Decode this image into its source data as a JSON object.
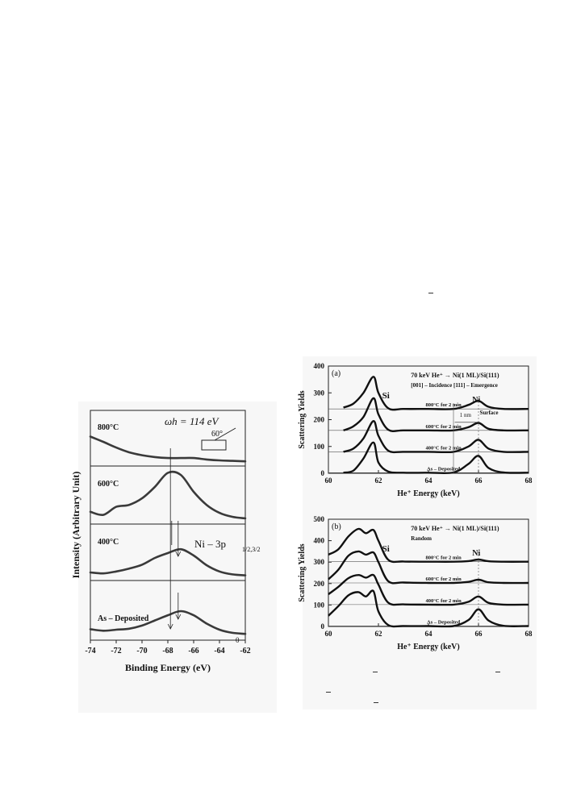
{
  "chart_data": [
    {
      "type": "line",
      "xlabel": "Binding Energy (eV)",
      "ylabel": "Intensity (Arbitrary Unit)",
      "xlim": [
        -74,
        -62
      ],
      "x_reversed": true,
      "xticks": [
        "-74",
        "-72",
        "-70",
        "-68",
        "-66",
        "-64",
        "-62"
      ],
      "photon_label": "ωh = 114 eV",
      "angle_label": "60°",
      "peak_label_main": "Ni – 3p",
      "peak_label_sub": "1/2,3/2",
      "series": [
        {
          "name": "800°C",
          "x": [
            -74,
            -73,
            -72,
            -71,
            -70,
            -69,
            -68,
            -67,
            -66,
            -65,
            -64,
            -63,
            -62
          ],
          "values": [
            0.55,
            0.44,
            0.32,
            0.22,
            0.16,
            0.12,
            0.1,
            0.1,
            0.1,
            0.07,
            0.05,
            0.04,
            0.03
          ]
        },
        {
          "name": "600°C",
          "x": [
            -74,
            -73,
            -72,
            -71,
            -70,
            -69,
            -68,
            -67,
            -66,
            -65,
            -64,
            -63,
            -62
          ],
          "values": [
            0.18,
            0.12,
            0.28,
            0.32,
            0.45,
            0.68,
            0.96,
            0.92,
            0.58,
            0.32,
            0.16,
            0.08,
            0.05
          ]
        },
        {
          "name": "400°C",
          "x": [
            -74,
            -73,
            -72,
            -71,
            -70,
            -69,
            -68,
            -67,
            -66,
            -65,
            -64,
            -63,
            -62
          ],
          "values": [
            0.1,
            0.08,
            0.12,
            0.18,
            0.26,
            0.4,
            0.5,
            0.58,
            0.45,
            0.25,
            0.12,
            0.06,
            0.04
          ]
        },
        {
          "name": "As – Deposited",
          "x": [
            -74,
            -73,
            -72,
            -71,
            -70,
            -69,
            -68,
            -67,
            -66,
            -65,
            -64,
            -63,
            -62
          ],
          "values": [
            0.15,
            0.12,
            0.14,
            0.16,
            0.22,
            0.32,
            0.42,
            0.5,
            0.42,
            0.26,
            0.14,
            0.08,
            0.06
          ]
        }
      ],
      "peak_positions": [
        -67.8,
        -67.2,
        -67.2
      ]
    },
    {
      "type": "line",
      "panel": "(a)",
      "xlabel": "He⁺ Energy (keV)",
      "ylabel": "Scattering Yields",
      "xlim": [
        60,
        68
      ],
      "ylim": [
        0,
        400
      ],
      "xticks": [
        "60",
        "62",
        "64",
        "66",
        "68"
      ],
      "yticks": [
        "0",
        "100",
        "200",
        "300",
        "400"
      ],
      "header_line1": "70 keV He⁺ → Ni(1 ML)/Si(111)",
      "header_line2": "[001] – Incidence [111] – Emergence",
      "si_label": "Si",
      "ni_label": "Ni",
      "thickness_label": "1 nm",
      "surface_label": "Surface",
      "x": [
        60.6,
        61.0,
        61.4,
        61.8,
        62.0,
        62.4,
        63.0,
        64.0,
        65.0,
        65.6,
        66.0,
        66.4,
        67.0,
        68.0
      ],
      "series": [
        {
          "name": "800°C for 2 min",
          "values": [
            245,
            260,
            300,
            360,
            300,
            242,
            240,
            240,
            240,
            255,
            270,
            248,
            240,
            240
          ]
        },
        {
          "name": "600°C for 2 min",
          "values": [
            160,
            175,
            210,
            280,
            220,
            162,
            160,
            160,
            160,
            172,
            188,
            166,
            160,
            160
          ]
        },
        {
          "name": "400°C for 2 min",
          "values": [
            80,
            92,
            130,
            195,
            140,
            84,
            80,
            80,
            80,
            100,
            125,
            92,
            80,
            80
          ]
        },
        {
          "name": "As – Deposited",
          "values": [
            2,
            10,
            55,
            115,
            40,
            6,
            2,
            2,
            3,
            35,
            65,
            20,
            3,
            2
          ]
        }
      ]
    },
    {
      "type": "line",
      "panel": "(b)",
      "xlabel": "He⁺ Energy (keV)",
      "ylabel": "Scattering Yields",
      "xlim": [
        60,
        68
      ],
      "ylim": [
        0,
        500
      ],
      "xticks": [
        "60",
        "62",
        "64",
        "66",
        "68"
      ],
      "yticks": [
        "0",
        "100",
        "200",
        "300",
        "400",
        "500"
      ],
      "header_line1": "70 keV He⁺ → Ni(1 ML)/Si(111)",
      "header_line2": "Random",
      "si_label": "Si",
      "ni_label": "Ni",
      "x": [
        60.0,
        60.4,
        60.8,
        61.2,
        61.5,
        61.8,
        62.0,
        62.4,
        63.0,
        64.0,
        65.0,
        65.6,
        66.0,
        66.4,
        67.0,
        68.0
      ],
      "series": [
        {
          "name": "800°C for 2 min",
          "values": [
            335,
            360,
            420,
            455,
            435,
            450,
            400,
            310,
            303,
            302,
            302,
            305,
            312,
            304,
            302,
            302
          ]
        },
        {
          "name": "600°C for 2 min",
          "values": [
            220,
            265,
            330,
            350,
            335,
            345,
            300,
            210,
            205,
            203,
            203,
            208,
            218,
            206,
            203,
            203
          ]
        },
        {
          "name": "400°C for 2 min",
          "values": [
            150,
            185,
            225,
            240,
            228,
            240,
            195,
            110,
            103,
            102,
            102,
            115,
            140,
            110,
            102,
            102
          ]
        },
        {
          "name": "As – Deposited",
          "values": [
            50,
            95,
            145,
            160,
            140,
            165,
            70,
            6,
            2,
            2,
            2,
            30,
            80,
            28,
            3,
            2
          ]
        }
      ]
    }
  ]
}
